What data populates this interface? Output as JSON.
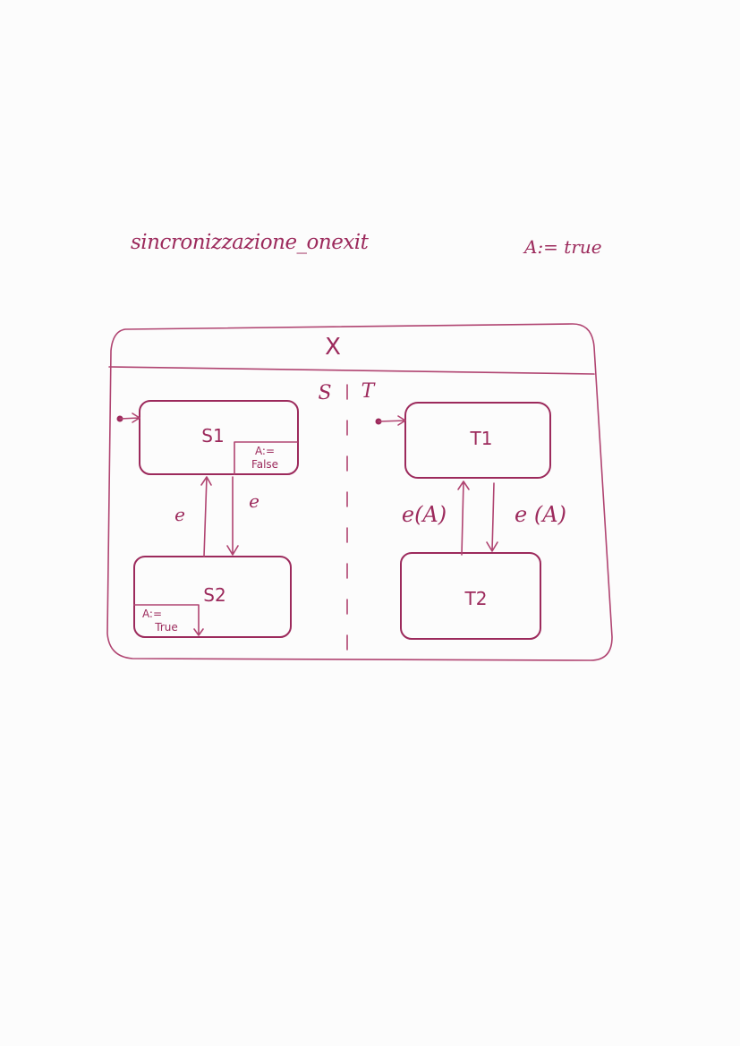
{
  "title": "sincronizzazione_onexit",
  "initial_action": "A:= true",
  "diagram": {
    "superstate_label": "X",
    "region_left_label": "S",
    "region_right_label": "T",
    "states": {
      "s1": "S1",
      "s2": "S2",
      "t1": "T1",
      "t2": "T2"
    },
    "actions": {
      "s1_line1": "A:=",
      "s1_line2": "False",
      "s2_line1": "A:=",
      "s2_line2": "True"
    },
    "transitions": {
      "s2_to_s1": "e",
      "s1_to_s2": "e",
      "t2_to_t1": "e(A)",
      "t1_to_t2": "e (A)"
    }
  }
}
